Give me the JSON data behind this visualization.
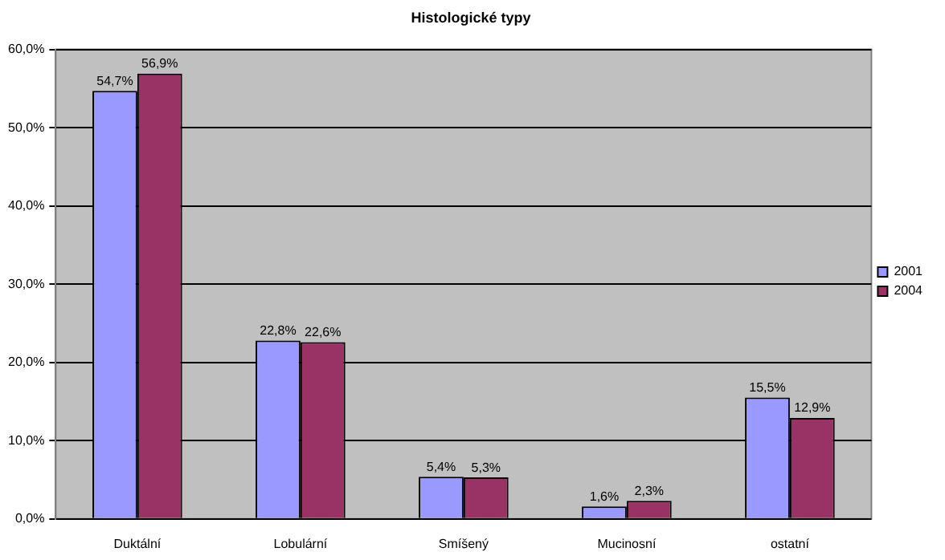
{
  "chart_data": {
    "type": "bar",
    "title": "Histologické typy",
    "categories": [
      "Duktální",
      "Lobulární",
      "Smíšený",
      "Mucinosní",
      "ostatní"
    ],
    "series": [
      {
        "name": "2001",
        "color": "#9999ff",
        "values": [
          54.7,
          22.8,
          5.4,
          1.6,
          15.5
        ],
        "value_labels": [
          "54,7%",
          "22,8%",
          "5,4%",
          "1,6%",
          "15,5%"
        ]
      },
      {
        "name": "2004",
        "color": "#993366",
        "values": [
          56.9,
          22.6,
          5.3,
          2.3,
          12.9
        ],
        "value_labels": [
          "56,9%",
          "22,6%",
          "5,3%",
          "2,3%",
          "12,9%"
        ]
      }
    ],
    "ylim": [
      0,
      60
    ],
    "yticks": [
      {
        "value": 0,
        "label": "0,0%"
      },
      {
        "value": 10,
        "label": "10,0%"
      },
      {
        "value": 20,
        "label": "20,0%"
      },
      {
        "value": 30,
        "label": "30,0%"
      },
      {
        "value": 40,
        "label": "40,0%"
      },
      {
        "value": 50,
        "label": "50,0%"
      },
      {
        "value": 60,
        "label": "60,0%"
      }
    ],
    "grid": "y",
    "legend": "right"
  }
}
